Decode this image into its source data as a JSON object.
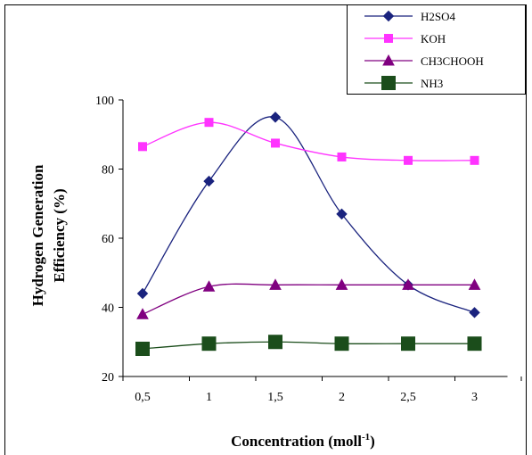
{
  "chart_data": {
    "type": "line",
    "title": "",
    "xlabel": "Concentration (moll",
    "xlabel_superscript": "-1",
    "xlabel_suffix": ")",
    "ylabel_line1": "Hydrogen Generation",
    "ylabel_line2": "Efficiency  (%)",
    "categories": [
      "0,5",
      "1",
      "1,5",
      "2",
      "2,5",
      "3"
    ],
    "ylim": [
      20,
      100
    ],
    "yticks": [
      20,
      40,
      60,
      80,
      100
    ],
    "grid": false,
    "legend_position": "top-right",
    "series": [
      {
        "name": "H2SO4",
        "values": [
          44,
          76.5,
          95,
          67,
          46.5,
          38.5
        ],
        "color": "#1a237e",
        "marker": "diamond"
      },
      {
        "name": "KOH",
        "values": [
          86.5,
          93.5,
          87.5,
          83.5,
          82.5,
          82.5
        ],
        "color": "#ff33ff",
        "marker": "square"
      },
      {
        "name": "CH3CHOOH",
        "values": [
          38,
          46,
          46.5,
          46.5,
          46.5,
          46.5
        ],
        "color": "#800080",
        "marker": "triangle"
      },
      {
        "name": "NH3",
        "values": [
          28,
          29.5,
          30,
          29.5,
          29.5,
          29.5
        ],
        "color": "#1b4d1b",
        "marker": "bigsquare"
      }
    ]
  }
}
